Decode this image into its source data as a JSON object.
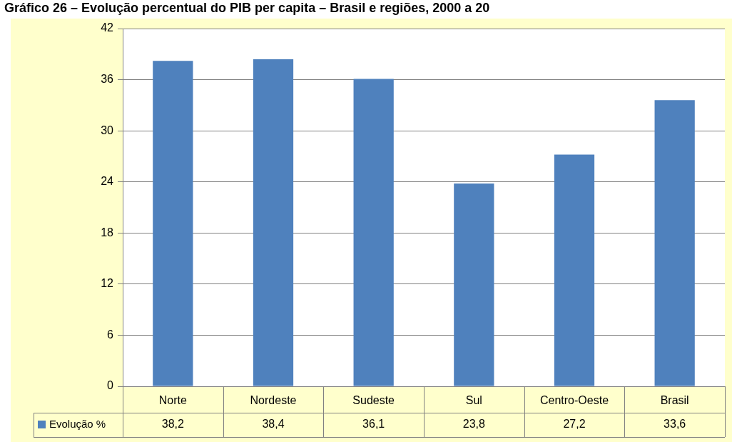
{
  "chart_data": {
    "type": "bar",
    "title": "Gráfico 26 – Evolução percentual do PIB per capita – Brasil e regiões, 2000 a 20",
    "categories": [
      "Norte",
      "Nordeste",
      "Sudeste",
      "Sul",
      "Centro-Oeste",
      "Brasil"
    ],
    "series": [
      {
        "name": "Evolução %",
        "color": "#4f81bd",
        "values": [
          38.2,
          38.4,
          36.1,
          23.8,
          27.2,
          33.6
        ],
        "value_labels": [
          "38,2",
          "38,4",
          "36,1",
          "23,8",
          "27,2",
          "33,6"
        ]
      }
    ],
    "ylim": [
      0,
      42
    ],
    "yticks": [
      0,
      6,
      12,
      18,
      24,
      30,
      36,
      42
    ],
    "grid": "y",
    "legend": "bottom left"
  }
}
